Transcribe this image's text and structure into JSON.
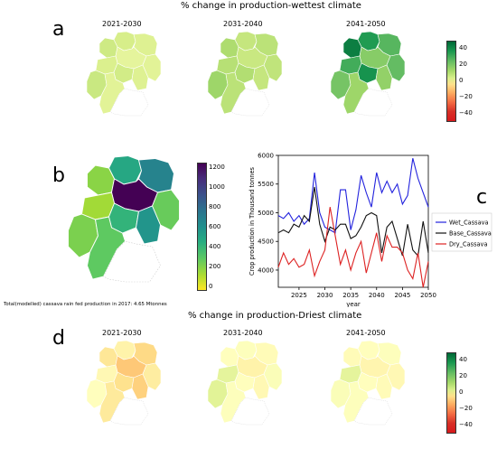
{
  "figure": {
    "wet_title": "% change in production-wettest climate",
    "dry_title": "% change in production-Driest climate",
    "letters": {
      "a": "a",
      "b": "b",
      "c": "c",
      "d": "d"
    },
    "periods": [
      "2021-2030",
      "2031-2040",
      "2041-2050"
    ],
    "note": "Total(modelled) cassava rain fed production in 2017: 4.65 Mtonnes"
  },
  "colorbars": {
    "change": {
      "ticks": [
        "40",
        "20",
        "0",
        "−20",
        "−40"
      ],
      "range": [
        -50,
        50
      ],
      "scheme": "red-yellow-green"
    },
    "production": {
      "ticks": [
        "1200",
        "1000",
        "800",
        "600",
        "400",
        "200",
        "0"
      ],
      "range": [
        0,
        1300
      ],
      "scheme": "viridis"
    }
  },
  "colors": {
    "wet_line": "#2222dd",
    "base_line": "#111111",
    "dry_line": "#dd2222"
  },
  "chart_data": [
    {
      "type": "map",
      "panel": "a",
      "subtitle": "2021-2030",
      "region_values_percent": [
        6,
        4,
        8,
        2,
        3,
        5,
        7,
        4,
        9,
        3
      ]
    },
    {
      "type": "map",
      "panel": "a",
      "subtitle": "2031-2040",
      "region_values_percent": [
        10,
        12,
        15,
        9,
        11,
        13,
        14,
        10,
        18,
        12
      ]
    },
    {
      "type": "map",
      "panel": "a",
      "subtitle": "2041-2050",
      "region_values_percent": [
        38,
        30,
        45,
        22,
        28,
        33,
        40,
        20,
        25,
        18
      ]
    },
    {
      "type": "map",
      "panel": "b",
      "region_values_thousand_tonnes": [
        520,
        720,
        230,
        1300,
        300,
        180,
        450,
        620,
        260,
        320
      ]
    },
    {
      "type": "line",
      "panel": "c",
      "xlabel": "year",
      "ylabel": "Crop production in Thousand tonnes",
      "xlim": [
        2021,
        2050
      ],
      "ylim": [
        3700,
        6000
      ],
      "xticks": [
        2025,
        2030,
        2035,
        2040,
        2045,
        2050
      ],
      "yticks": [
        4000,
        4500,
        5000,
        5500,
        6000
      ],
      "grid": false,
      "legend_position": "right",
      "x": [
        2021,
        2022,
        2023,
        2024,
        2025,
        2026,
        2027,
        2028,
        2029,
        2030,
        2031,
        2032,
        2033,
        2034,
        2035,
        2036,
        2037,
        2038,
        2039,
        2040,
        2041,
        2042,
        2043,
        2044,
        2045,
        2046,
        2047,
        2048,
        2049,
        2050
      ],
      "series": [
        {
          "name": "Wet_Cassava",
          "values": [
            4950,
            4900,
            5000,
            4850,
            4950,
            4800,
            4900,
            5700,
            5000,
            4750,
            4700,
            4650,
            5400,
            5400,
            4700,
            5050,
            5650,
            5350,
            5100,
            5700,
            5350,
            5550,
            5350,
            5500,
            5150,
            5300,
            5950,
            5600,
            5350,
            5100
          ]
        },
        {
          "name": "Base_Cassava",
          "values": [
            4650,
            4700,
            4650,
            4800,
            4750,
            4950,
            4850,
            5450,
            4800,
            4500,
            4750,
            4700,
            4800,
            4800,
            4550,
            4600,
            4750,
            4950,
            5000,
            4950,
            4300,
            4750,
            4850,
            4550,
            4250,
            4800,
            4350,
            4250,
            4850,
            4300
          ]
        },
        {
          "name": "Dry_Cassava",
          "values": [
            4050,
            4300,
            4100,
            4200,
            4050,
            4100,
            4350,
            3900,
            4150,
            4350,
            5100,
            4600,
            4100,
            4350,
            4000,
            4300,
            4500,
            3950,
            4300,
            4650,
            4150,
            4600,
            4400,
            4400,
            4300,
            4000,
            3850,
            4300,
            3700,
            4150
          ]
        }
      ]
    },
    {
      "type": "map",
      "panel": "d",
      "subtitle": "2021-2030",
      "region_values_percent": [
        -10,
        -18,
        -14,
        -22,
        -12,
        -8,
        -16,
        -20,
        -6,
        -13
      ]
    },
    {
      "type": "map",
      "panel": "d",
      "subtitle": "2031-2040",
      "region_values_percent": [
        -5,
        -7,
        -6,
        -10,
        -4,
        2,
        -6,
        -8,
        3,
        -5
      ]
    },
    {
      "type": "map",
      "panel": "d",
      "subtitle": "2041-2050",
      "region_values_percent": [
        -6,
        -5,
        -7,
        -9,
        -8,
        2,
        -6,
        -7,
        -4,
        -5
      ]
    }
  ]
}
